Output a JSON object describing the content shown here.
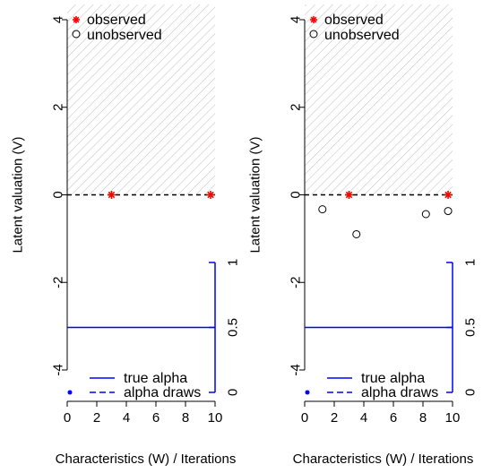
{
  "chart_data": [
    {
      "type": "scatter",
      "title": "",
      "xlabel": "Characteristics (W) / Iterations",
      "ylabel": "Latent valuation (V)",
      "xlim": [
        0,
        10
      ],
      "ylim": [
        -4,
        4
      ],
      "x_ticks": [
        "0",
        "2",
        "4",
        "6",
        "8",
        "10"
      ],
      "y_ticks": [
        "-4",
        "-2",
        "0",
        "2",
        "4"
      ],
      "secondary_axis": {
        "side": "right",
        "range": [
          0,
          1
        ],
        "ticks": [
          "0",
          "0.5",
          "1"
        ]
      },
      "legend_top": [
        {
          "label": "observed",
          "marker": "asterisk",
          "color": "#ff0000"
        },
        {
          "label": "unobserved",
          "marker": "open-circle",
          "color": "#000000"
        }
      ],
      "legend_bottom": [
        {
          "label": "true alpha",
          "style": "solid",
          "color": "#0000ff"
        },
        {
          "label": "alpha draws",
          "style": "dashed",
          "color": "#0000ff"
        }
      ],
      "hatched_region": {
        "y_from": 0,
        "y_to": 4.4
      },
      "threshold_line_y": 0,
      "true_alpha_level": 0.5,
      "series": [
        {
          "name": "observed",
          "marker": "asterisk",
          "color": "#ff0000",
          "points": [
            [
              3.0,
              0
            ],
            [
              9.7,
              0
            ]
          ]
        },
        {
          "name": "unobserved",
          "marker": "open-circle",
          "color": "#000000",
          "points": []
        }
      ]
    },
    {
      "type": "scatter",
      "title": "",
      "xlabel": "Characteristics (W) / Iterations",
      "ylabel": "Latent valuation (V)",
      "xlim": [
        0,
        10
      ],
      "ylim": [
        -4,
        4
      ],
      "x_ticks": [
        "0",
        "2",
        "4",
        "6",
        "8",
        "10"
      ],
      "y_ticks": [
        "-4",
        "-2",
        "0",
        "2",
        "4"
      ],
      "secondary_axis": {
        "side": "right",
        "range": [
          0,
          1
        ],
        "ticks": [
          "0",
          "0.5",
          "1"
        ]
      },
      "legend_top": [
        {
          "label": "observed",
          "marker": "asterisk",
          "color": "#ff0000"
        },
        {
          "label": "unobserved",
          "marker": "open-circle",
          "color": "#000000"
        }
      ],
      "legend_bottom": [
        {
          "label": "true alpha",
          "style": "solid",
          "color": "#0000ff"
        },
        {
          "label": "alpha draws",
          "style": "dashed",
          "color": "#0000ff"
        }
      ],
      "hatched_region": {
        "y_from": 0,
        "y_to": 4.4
      },
      "threshold_line_y": 0,
      "true_alpha_level": 0.5,
      "series": [
        {
          "name": "observed",
          "marker": "asterisk",
          "color": "#ff0000",
          "points": [
            [
              3.0,
              0
            ],
            [
              9.7,
              0
            ]
          ]
        },
        {
          "name": "unobserved",
          "marker": "open-circle",
          "color": "#000000",
          "points": [
            [
              1.2,
              -0.33
            ],
            [
              3.5,
              -0.9
            ],
            [
              8.2,
              -0.44
            ],
            [
              9.7,
              -0.37
            ]
          ]
        }
      ]
    }
  ]
}
